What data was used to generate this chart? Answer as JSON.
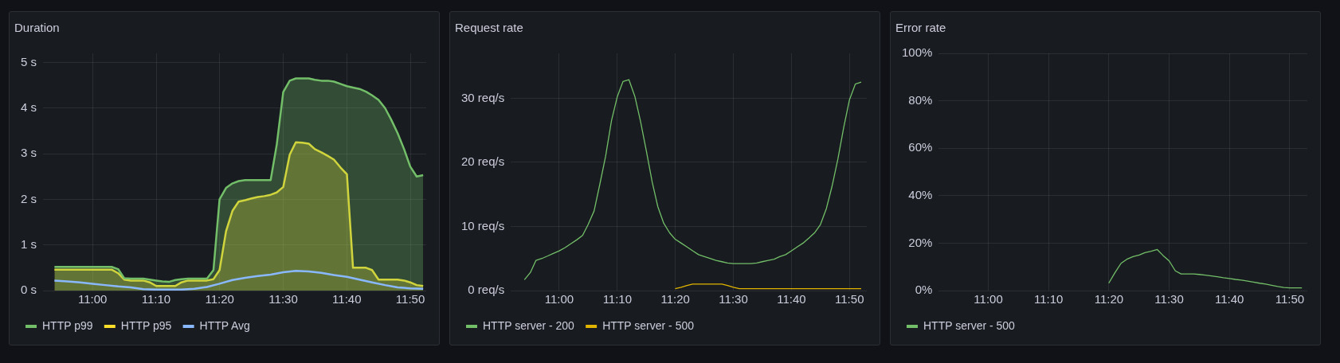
{
  "chart_data": [
    {
      "type": "area",
      "title": "Duration",
      "x": [
        10.9,
        10.917,
        10.933,
        10.95,
        10.967,
        10.983,
        11,
        11.017,
        11.033,
        11.05,
        11.067,
        11.083,
        11.1,
        11.117,
        11.133,
        11.15,
        11.167,
        11.183,
        11.2,
        11.217,
        11.233,
        11.25,
        11.267,
        11.283,
        11.3,
        11.317,
        11.333,
        11.35,
        11.367,
        11.383,
        11.4,
        11.417,
        11.433,
        11.45,
        11.467,
        11.483,
        11.5,
        11.517,
        11.533,
        11.55,
        11.567,
        11.583,
        11.6,
        11.617,
        11.633,
        11.65,
        11.667,
        11.683,
        11.7,
        11.717,
        11.733,
        11.75,
        11.767,
        11.783,
        11.8,
        11.817,
        11.833,
        11.85,
        11.867
      ],
      "series": [
        {
          "name": "HTTP p99",
          "color": "#73bf69",
          "values": [
            0.52,
            0.52,
            0.52,
            0.52,
            0.52,
            0.52,
            0.52,
            0.52,
            0.52,
            0.52,
            0.47,
            0.27,
            0.26,
            0.26,
            0.26,
            0.24,
            0.22,
            0.2,
            0.19,
            0.23,
            0.25,
            0.26,
            0.26,
            0.26,
            0.26,
            0.45,
            2.0,
            2.25,
            2.35,
            2.4,
            2.42,
            2.42,
            2.42,
            2.42,
            2.42,
            3.2,
            4.35,
            4.6,
            4.65,
            4.65,
            4.65,
            4.62,
            4.6,
            4.6,
            4.58,
            4.53,
            4.48,
            4.45,
            4.42,
            4.36,
            4.28,
            4.18,
            4.0,
            3.75,
            3.45,
            3.1,
            2.72,
            2.5,
            2.53
          ]
        },
        {
          "name": "HTTP p95",
          "color": "#fade2a",
          "values": [
            0.46,
            0.46,
            0.46,
            0.46,
            0.46,
            0.46,
            0.46,
            0.46,
            0.46,
            0.46,
            0.38,
            0.24,
            0.22,
            0.22,
            0.22,
            0.18,
            0.1,
            0.1,
            0.1,
            0.1,
            0.18,
            0.22,
            0.22,
            0.22,
            0.22,
            0.25,
            0.45,
            1.3,
            1.75,
            1.95,
            1.98,
            2.02,
            2.05,
            2.07,
            2.1,
            2.15,
            2.27,
            2.98,
            3.25,
            3.24,
            3.22,
            3.1,
            3.03,
            2.95,
            2.87,
            2.7,
            2.55,
            0.5,
            0.5,
            0.5,
            0.45,
            0.24,
            0.24,
            0.24,
            0.24,
            0.22,
            0.18,
            0.12,
            0.1
          ]
        },
        {
          "name": "HTTP Avg",
          "color": "#8ab8ff",
          "type": "line",
          "x": [
            10.9,
            10.933,
            10.967,
            11,
            11.033,
            11.067,
            11.1,
            11.133,
            11.167,
            11.2,
            11.233,
            11.267,
            11.3,
            11.333,
            11.367,
            11.4,
            11.433,
            11.467,
            11.5,
            11.533,
            11.567,
            11.6,
            11.633,
            11.667,
            11.7,
            11.733,
            11.767,
            11.8,
            11.833,
            11.867
          ],
          "values": [
            0.22,
            0.2,
            0.18,
            0.15,
            0.12,
            0.09,
            0.07,
            0.03,
            0.02,
            0.02,
            0.02,
            0.04,
            0.08,
            0.15,
            0.23,
            0.28,
            0.32,
            0.35,
            0.4,
            0.43,
            0.42,
            0.39,
            0.34,
            0.3,
            0.24,
            0.18,
            0.12,
            0.07,
            0.05,
            0.04
          ]
        }
      ],
      "xlim": [
        10.87,
        11.875
      ],
      "xticks": [
        {
          "value": 11,
          "label": "11:00"
        },
        {
          "value": 11.1667,
          "label": "11:10"
        },
        {
          "value": 11.3333,
          "label": "11:20"
        },
        {
          "value": 11.5,
          "label": "11:30"
        },
        {
          "value": 11.6667,
          "label": "11:40"
        },
        {
          "value": 11.8333,
          "label": "11:50"
        }
      ],
      "ylim": [
        0,
        5.2
      ],
      "yticks": [
        {
          "value": 0,
          "label": "0 s"
        },
        {
          "value": 1,
          "label": "1 s"
        },
        {
          "value": 2,
          "label": "2 s"
        },
        {
          "value": 3,
          "label": "3 s"
        },
        {
          "value": 4,
          "label": "4 s"
        },
        {
          "value": 5,
          "label": "5 s"
        }
      ],
      "grid": true,
      "legend": "bottom",
      "marker": "none"
    },
    {
      "type": "line",
      "title": "Request rate",
      "x": [
        10.9,
        10.917,
        10.933,
        10.95,
        10.967,
        10.983,
        11,
        11.017,
        11.033,
        11.05,
        11.067,
        11.083,
        11.1,
        11.117,
        11.133,
        11.15,
        11.167,
        11.183,
        11.2,
        11.217,
        11.233,
        11.25,
        11.267,
        11.283,
        11.3,
        11.317,
        11.333,
        11.35,
        11.367,
        11.383,
        11.4,
        11.417,
        11.433,
        11.45,
        11.467,
        11.483,
        11.5,
        11.517,
        11.533,
        11.55,
        11.567,
        11.583,
        11.6,
        11.617,
        11.633,
        11.65,
        11.667,
        11.683,
        11.7,
        11.717,
        11.733,
        11.75,
        11.767,
        11.783,
        11.8,
        11.817,
        11.833,
        11.85,
        11.867
      ],
      "series": [
        {
          "name": "HTTP server - 200",
          "color": "#73bf69",
          "values": [
            1.7,
            2.8,
            4.7,
            5.0,
            5.4,
            5.8,
            6.2,
            6.7,
            7.3,
            7.9,
            8.6,
            10.3,
            12.4,
            16.7,
            20.9,
            26.5,
            30.3,
            32.6,
            32.9,
            30.3,
            26.5,
            21.8,
            16.9,
            13.1,
            10.5,
            9.0,
            8.0,
            7.4,
            6.8,
            6.2,
            5.6,
            5.3,
            5.0,
            4.7,
            4.5,
            4.3,
            4.2,
            4.2,
            4.2,
            4.2,
            4.3,
            4.5,
            4.7,
            4.9,
            5.3,
            5.6,
            6.2,
            6.8,
            7.4,
            8.2,
            9.0,
            10.3,
            12.8,
            16.2,
            20.5,
            25.5,
            29.7,
            32.2,
            32.5
          ]
        },
        {
          "name": "HTTP server - 500",
          "color": "#e0b400",
          "x": [
            11.333,
            11.35,
            11.367,
            11.383,
            11.4,
            11.417,
            11.433,
            11.45,
            11.467,
            11.483,
            11.5,
            11.517,
            11.533,
            11.55,
            11.567,
            11.583,
            11.6,
            11.617,
            11.633,
            11.65,
            11.667,
            11.683,
            11.7,
            11.717,
            11.733,
            11.75,
            11.767,
            11.783,
            11.8,
            11.817,
            11.833,
            11.85,
            11.867
          ],
          "values": [
            0.3,
            0.5,
            0.8,
            1.0,
            1.0,
            1.0,
            1.0,
            1.0,
            1.0,
            0.8,
            0.5,
            0.3,
            0.3,
            0.3,
            0.3,
            0.3,
            0.3,
            0.3,
            0.3,
            0.3,
            0.3,
            0.3,
            0.3,
            0.3,
            0.3,
            0.3,
            0.3,
            0.3,
            0.3,
            0.3,
            0.3,
            0.3,
            0.3
          ]
        }
      ],
      "xlim": [
        10.861,
        11.883
      ],
      "xticks": [
        {
          "value": 11,
          "label": "11:00"
        },
        {
          "value": 11.1667,
          "label": "11:10"
        },
        {
          "value": 11.3333,
          "label": "11:20"
        },
        {
          "value": 11.5,
          "label": "11:30"
        },
        {
          "value": 11.6667,
          "label": "11:40"
        },
        {
          "value": 11.8333,
          "label": "11:50"
        }
      ],
      "ylim": [
        0,
        37
      ],
      "yticks": [
        {
          "value": 0,
          "label": "0 req/s"
        },
        {
          "value": 10,
          "label": "10 req/s"
        },
        {
          "value": 20,
          "label": "20 req/s"
        },
        {
          "value": 30,
          "label": "30 req/s"
        }
      ],
      "grid": true,
      "legend": "bottom",
      "marker": "none"
    },
    {
      "type": "line",
      "title": "Error rate",
      "x": [
        11.333,
        11.35,
        11.367,
        11.383,
        11.4,
        11.417,
        11.433,
        11.45,
        11.467,
        11.483,
        11.5,
        11.517,
        11.533,
        11.55,
        11.567,
        11.583,
        11.6,
        11.617,
        11.633,
        11.65,
        11.667,
        11.683,
        11.7,
        11.717,
        11.733,
        11.75,
        11.767,
        11.783,
        11.8,
        11.817,
        11.833,
        11.85,
        11.867
      ],
      "series": [
        {
          "name": "HTTP server - 500",
          "color": "#73bf69",
          "values": [
            3.1,
            7.5,
            11.5,
            13.2,
            14.3,
            15.0,
            16.0,
            16.6,
            17.3,
            14.8,
            12.5,
            8.3,
            7.0,
            7.0,
            7.0,
            6.8,
            6.5,
            6.2,
            5.8,
            5.4,
            5.1,
            4.7,
            4.4,
            4.0,
            3.6,
            3.1,
            2.7,
            2.2,
            1.7,
            1.3,
            1.1,
            1.1,
            1.1
          ]
        }
      ],
      "xlim": [
        10.863,
        11.882
      ],
      "xticks": [
        {
          "value": 11,
          "label": "11:00"
        },
        {
          "value": 11.1667,
          "label": "11:10"
        },
        {
          "value": 11.3333,
          "label": "11:20"
        },
        {
          "value": 11.5,
          "label": "11:30"
        },
        {
          "value": 11.6667,
          "label": "11:40"
        },
        {
          "value": 11.8333,
          "label": "11:50"
        }
      ],
      "ylim": [
        0,
        100
      ],
      "yticks": [
        {
          "value": 0,
          "label": "0%"
        },
        {
          "value": 20,
          "label": "20%"
        },
        {
          "value": 40,
          "label": "40%"
        },
        {
          "value": 60,
          "label": "60%"
        },
        {
          "value": 80,
          "label": "80%"
        },
        {
          "value": 100,
          "label": "100%"
        }
      ],
      "grid": true,
      "legend": "bottom",
      "marker": "none"
    }
  ]
}
